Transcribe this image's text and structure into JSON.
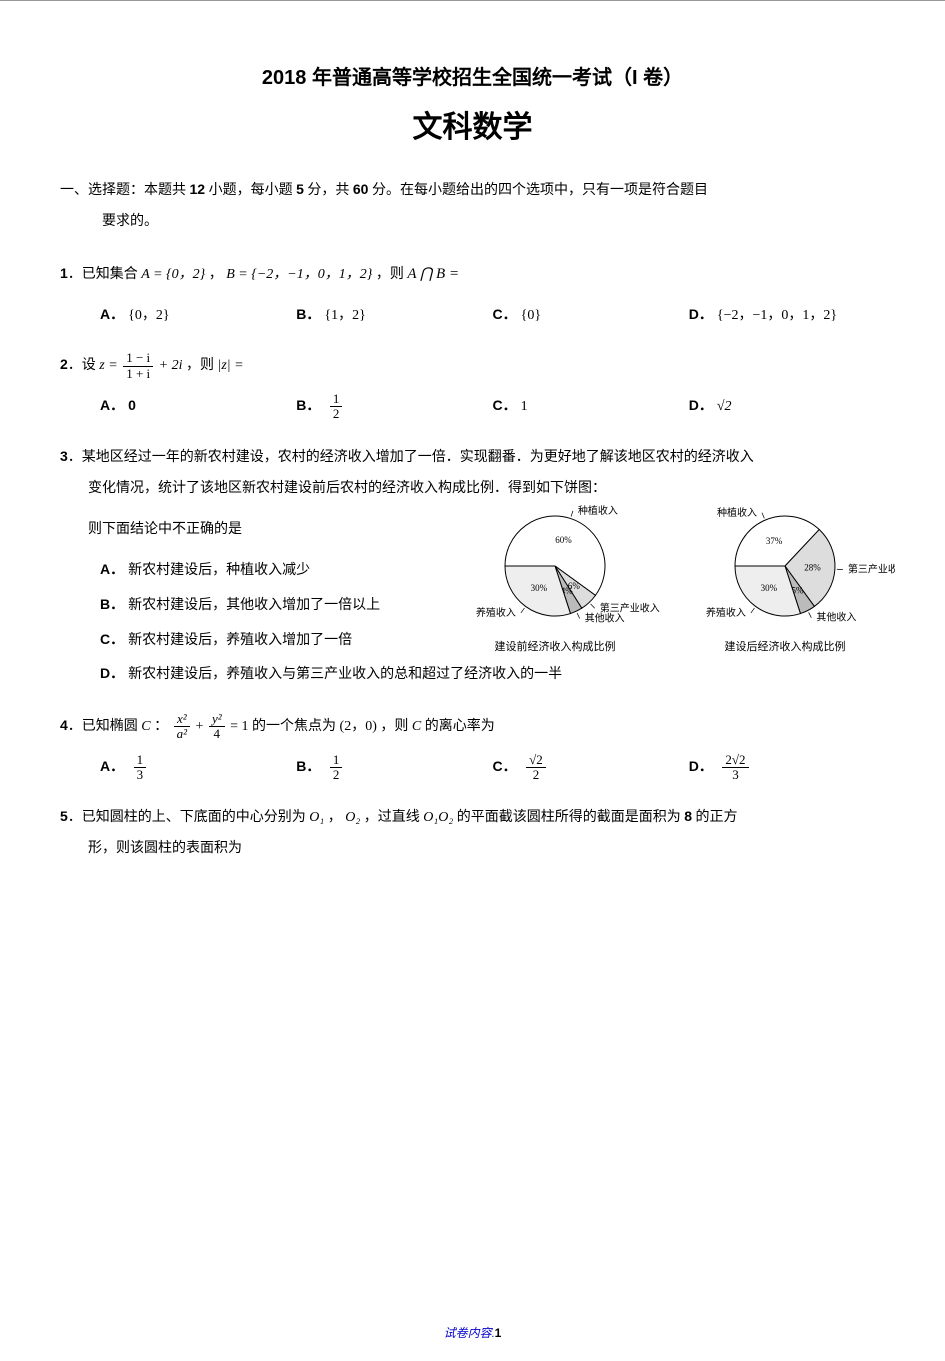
{
  "header": {
    "title": "2018 年普通高等学校招生全国统一考试（I 卷）",
    "subject": "文科数学"
  },
  "section": {
    "lead_prefix": "一、选择题：本题共",
    "count": "12",
    "mid1": "小题，每小题",
    "per": "5",
    "mid2": "分，共",
    "total": "60",
    "tail": "分。在每小题给出的四个选项中，只有一项是符合题目",
    "tail2": "要求的。"
  },
  "q1": {
    "num": "1",
    "stem_a": "．已知集合 ",
    "A_eq": "A = {0，2}",
    "sep": "，",
    "B_eq": "B = {−2，−1，0，1，2}",
    "stem_b": "，则",
    "expr": "A ⋂ B =",
    "opts": {
      "A": "{0，2}",
      "B": "{1，2}",
      "C": "{0}",
      "D": "{−2，−1，0，1，2}"
    }
  },
  "q2": {
    "num": "2",
    "stem_a": "．设 ",
    "eq_lhs": "z =",
    "frac_num": "1 − i",
    "frac_den": "1 + i",
    "eq_tail": " + 2i",
    "stem_b": "，则",
    "abs": "|z| =",
    "opts": {
      "A": "0",
      "B_num": "1",
      "B_den": "2",
      "C": "1",
      "D": "√2"
    }
  },
  "q3": {
    "num": "3",
    "line1": "．某地区经过一年的新农村建设，农村的经济收入增加了一倍．实现翻番．为更好地了解该地区农村的经济收入",
    "line2": "变化情况，统计了该地区新农村建设前后农村的经济收入构成比例．得到如下饼图：",
    "line3": "则下面结论中不正确的是",
    "opts": {
      "A": "新农村建设后，种植收入减少",
      "B": "新农村建设后，其他收入增加了一倍以上",
      "C": "新农村建设后，养殖收入增加了一倍",
      "D": "新农村建设后，养殖收入与第三产业收入的总和超过了经济收入的一半"
    },
    "pie_before": {
      "caption": "建设前经济收入构成比例",
      "slices": [
        {
          "label": "种植收入",
          "value": 60,
          "color": "#ffffff",
          "percent_label": "60%"
        },
        {
          "label": "第三产业收入",
          "value": 6,
          "color": "#dddddd",
          "percent_label": "6%"
        },
        {
          "label": "其他收入",
          "value": 4,
          "color": "#bbbbbb",
          "percent_label": "4%"
        },
        {
          "label": "养殖收入",
          "value": 30,
          "color": "#eeeeee",
          "percent_label": "30%"
        }
      ],
      "stroke": "#000000",
      "radius": 50
    },
    "pie_after": {
      "caption": "建设后经济收入构成比例",
      "slices": [
        {
          "label": "种植收入",
          "value": 37,
          "color": "#ffffff",
          "percent_label": "37%"
        },
        {
          "label": "第三产业收入",
          "value": 28,
          "color": "#dddddd",
          "percent_label": "28%"
        },
        {
          "label": "其他收入",
          "value": 5,
          "color": "#bbbbbb",
          "percent_label": "5%"
        },
        {
          "label": "养殖收入",
          "value": 30,
          "color": "#eeeeee",
          "percent_label": "30%"
        }
      ],
      "stroke": "#000000",
      "radius": 50
    }
  },
  "q4": {
    "num": "4",
    "stem_a": "．已知椭圆",
    "C": "C",
    "colon": "：",
    "fx_num": "x²",
    "fx_den": "a²",
    "plus": " + ",
    "fy_num": "y²",
    "fy_den": "4",
    "eq1": " = 1",
    "stem_b": "的一个焦点为",
    "focus": "(2，0)",
    "stem_c": "，则",
    "C2": "C",
    "stem_d": "的离心率为",
    "opts": {
      "A_num": "1",
      "A_den": "3",
      "B_num": "1",
      "B_den": "2",
      "C_num": "√2",
      "C_den": "2",
      "D_num": "2√2",
      "D_den": "3"
    }
  },
  "q5": {
    "num": "5",
    "stem_a": "．已知圆柱的上、下底面的中心分别为",
    "O1": "O₁",
    "sep": "，",
    "O2": "O₂",
    "stem_b": "，过直线",
    "O1O2": "O₁O₂",
    "stem_c": "的平面截该圆柱所得的截面是面积为",
    "eight": "8",
    "stem_d": "的正方",
    "line2": "形，则该圆柱的表面积为"
  },
  "footer": {
    "label": "试卷内容.",
    "page": "1"
  }
}
